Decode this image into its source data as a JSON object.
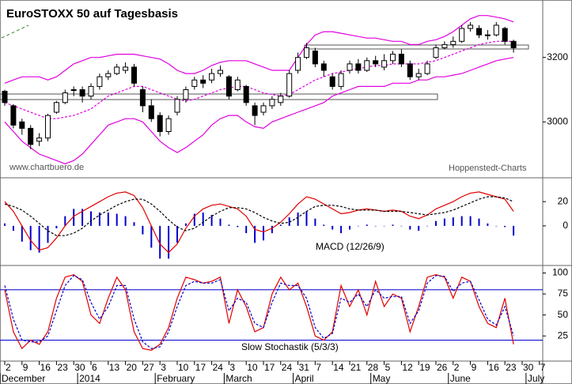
{
  "chart_data": [
    {
      "type": "candlestick",
      "title": "EuroSTOXX 50 auf Tagesbasis",
      "source": "www.chartbuero.de",
      "credit": "Hoppenstedt-Charts",
      "ylim": [
        2829,
        3366
      ],
      "yticks": [
        3000,
        3200
      ],
      "candle_color": "#000000",
      "band_color": "#e000e0",
      "open": [
        3095,
        3050,
        3000,
        2980,
        2940,
        2950,
        3030,
        3060,
        3100,
        3100,
        3080,
        3110,
        3140,
        3150,
        3160,
        3170,
        3100,
        3050,
        3020,
        2970,
        3030,
        3070,
        3110,
        3130,
        3130,
        3150,
        3140,
        3100,
        3110,
        3050,
        3030,
        3050,
        3060,
        3080,
        3160,
        3200,
        3220,
        3180,
        3140,
        3110,
        3160,
        3180,
        3160,
        3190,
        3170,
        3190,
        3210,
        3180,
        3140,
        3150,
        3200,
        3230,
        3240,
        3250,
        3290,
        3290,
        3270,
        3270,
        3290,
        3250,
        null,
        null,
        null,
        null
      ],
      "high": [
        3100,
        3055,
        3010,
        2990,
        2965,
        3025,
        3065,
        3100,
        3110,
        3110,
        3120,
        3150,
        3160,
        3180,
        3185,
        3180,
        3110,
        3070,
        3030,
        3020,
        3080,
        3110,
        3140,
        3145,
        3165,
        3175,
        3145,
        3140,
        3115,
        3060,
        3060,
        3080,
        3090,
        3160,
        3215,
        3245,
        3230,
        3190,
        3150,
        3160,
        3190,
        3195,
        3200,
        3205,
        3210,
        3220,
        3225,
        3190,
        3165,
        3190,
        3240,
        3250,
        3265,
        3300,
        3310,
        3300,
        3285,
        3310,
        3295,
        3255,
        null,
        null,
        null,
        null
      ],
      "low": [
        3050,
        2980,
        2960,
        2915,
        2925,
        2940,
        3025,
        3055,
        3080,
        3060,
        3070,
        3100,
        3130,
        3145,
        3150,
        3110,
        3030,
        3000,
        2955,
        2960,
        3020,
        3060,
        3100,
        3105,
        3120,
        3140,
        3070,
        3095,
        3050,
        2990,
        3020,
        3040,
        3050,
        3075,
        3150,
        3195,
        3170,
        3140,
        3100,
        3100,
        3150,
        3150,
        3155,
        3170,
        3160,
        3180,
        3170,
        3130,
        3130,
        3145,
        3195,
        3225,
        3230,
        3245,
        3280,
        3260,
        3255,
        3265,
        3240,
        3215,
        null,
        null,
        null,
        null
      ],
      "close": [
        3060,
        2990,
        2980,
        2930,
        2950,
        3020,
        3060,
        3090,
        3100,
        3080,
        3110,
        3140,
        3150,
        3170,
        3170,
        3120,
        3050,
        3010,
        2970,
        3010,
        3070,
        3100,
        3130,
        3120,
        3150,
        3160,
        3080,
        3130,
        3060,
        3020,
        3050,
        3070,
        3080,
        3150,
        3200,
        3230,
        3180,
        3160,
        3110,
        3150,
        3180,
        3160,
        3190,
        3180,
        3190,
        3210,
        3180,
        3140,
        3150,
        3180,
        3230,
        3240,
        3250,
        3290,
        3300,
        3270,
        3270,
        3300,
        3250,
        3230,
        null,
        null,
        null,
        null
      ],
      "upper": [
        3120,
        3130,
        3140,
        3140,
        3140,
        3130,
        3140,
        3160,
        3180,
        3190,
        3200,
        3200,
        3205,
        3210,
        3210,
        3210,
        3205,
        3200,
        3195,
        3180,
        3160,
        3150,
        3150,
        3160,
        3175,
        3185,
        3190,
        3190,
        3190,
        3180,
        3170,
        3160,
        3160,
        3160,
        3200,
        3240,
        3270,
        3280,
        3280,
        3275,
        3270,
        3265,
        3260,
        3260,
        3255,
        3250,
        3250,
        3240,
        3240,
        3250,
        3255,
        3265,
        3280,
        3300,
        3320,
        3330,
        3330,
        3325,
        3320,
        3310,
        null,
        null,
        null,
        null
      ],
      "middle": [
        3060,
        3050,
        3040,
        3030,
        3020,
        3010,
        3010,
        3015,
        3020,
        3030,
        3040,
        3060,
        3080,
        3090,
        3100,
        3110,
        3110,
        3100,
        3090,
        3080,
        3070,
        3065,
        3070,
        3080,
        3090,
        3100,
        3105,
        3110,
        3110,
        3100,
        3090,
        3085,
        3080,
        3085,
        3100,
        3115,
        3130,
        3140,
        3150,
        3155,
        3160,
        3165,
        3170,
        3175,
        3175,
        3180,
        3180,
        3180,
        3180,
        3185,
        3190,
        3200,
        3210,
        3220,
        3230,
        3240,
        3245,
        3250,
        3250,
        3250,
        null,
        null,
        null,
        null
      ],
      "lower": [
        3000,
        2970,
        2940,
        2920,
        2900,
        2890,
        2880,
        2870,
        2880,
        2900,
        2930,
        2960,
        2990,
        3000,
        3010,
        3010,
        3000,
        2970,
        2940,
        2920,
        2905,
        2920,
        2940,
        2960,
        2990,
        3010,
        3020,
        3020,
        3000,
        2985,
        2980,
        3000,
        3010,
        3020,
        3030,
        3040,
        3050,
        3060,
        3080,
        3090,
        3100,
        3110,
        3110,
        3110,
        3110,
        3120,
        3120,
        3120,
        3130,
        3130,
        3140,
        3140,
        3145,
        3150,
        3160,
        3170,
        3180,
        3190,
        3195,
        3200,
        null,
        null,
        null,
        null
      ]
    },
    {
      "type": "macd",
      "label": "MACD (12/26/9)",
      "ylim": [
        -32,
        39
      ],
      "yticks": [
        0,
        20
      ],
      "series": [
        {
          "color": "#e00000",
          "values": [
            20,
            12,
            0,
            -12,
            -20,
            -18,
            -10,
            0,
            8,
            12,
            16,
            20,
            24,
            27,
            28,
            25,
            15,
            0,
            -15,
            -22,
            -15,
            -2,
            8,
            14,
            17,
            18,
            16,
            14,
            8,
            -3,
            -5,
            -2,
            3,
            10,
            18,
            24,
            22,
            18,
            14,
            10,
            11,
            13,
            14,
            13,
            12,
            13,
            12,
            8,
            6,
            9,
            14,
            17,
            20,
            24,
            27,
            28,
            26,
            24,
            22,
            12,
            null,
            null,
            null,
            null
          ]
        },
        {
          "color": "#000000",
          "dashed": true,
          "values": [
            18,
            16,
            13,
            8,
            2,
            -4,
            -8,
            -8,
            -6,
            -2,
            4,
            9,
            13,
            17,
            20,
            22,
            22,
            18,
            12,
            5,
            -1,
            -4,
            -2,
            3,
            8,
            12,
            15,
            15,
            14,
            11,
            7,
            4,
            2,
            3,
            7,
            12,
            16,
            17,
            17,
            16,
            14,
            13,
            13,
            13,
            12,
            12,
            12,
            11,
            10,
            9,
            10,
            11,
            13,
            16,
            19,
            22,
            24,
            24,
            23,
            20,
            null,
            null,
            null,
            null
          ]
        }
      ],
      "histogram": {
        "color": "#0000cc",
        "values": [
          2,
          -4,
          -13,
          -20,
          -22,
          -14,
          -2,
          8,
          14,
          14,
          12,
          11,
          11,
          10,
          8,
          3,
          -7,
          -18,
          -27,
          -27,
          -14,
          2,
          10,
          11,
          9,
          6,
          1,
          -1,
          -6,
          -14,
          -12,
          -6,
          1,
          7,
          11,
          12,
          6,
          1,
          -3,
          -6,
          -3,
          0,
          1,
          0,
          0,
          1,
          0,
          -3,
          -4,
          0,
          4,
          6,
          7,
          8,
          8,
          6,
          2,
          0,
          -1,
          -8,
          null,
          null,
          null,
          null
        ]
      }
    },
    {
      "type": "line",
      "label": "Slow Stochastik (5/3/3)",
      "ylim": [
        -4,
        108
      ],
      "yticks": [
        25,
        50,
        75,
        100
      ],
      "levels": [
        20,
        80
      ],
      "level_color": "#0000cc",
      "categories": [
        "2",
        null,
        "9",
        null,
        "16",
        null,
        "23",
        null,
        "30",
        null,
        "6",
        null,
        "13",
        null,
        "20",
        null,
        "27",
        null,
        "3",
        null,
        "10",
        null,
        "17",
        null,
        "24",
        null,
        "3",
        null,
        "10",
        null,
        "17",
        null,
        "24",
        null,
        "31",
        null,
        "7",
        null,
        "14",
        null,
        "21",
        null,
        "28",
        null,
        "5",
        null,
        "12",
        null,
        "19",
        null,
        "26",
        null,
        "2",
        null,
        "9",
        null,
        "16",
        null,
        "23",
        null,
        "30",
        null,
        "7",
        null
      ],
      "months": [
        "December",
        null,
        null,
        null,
        null,
        null,
        null,
        null,
        null,
        "2014",
        null,
        null,
        null,
        null,
        null,
        null,
        null,
        null,
        "February",
        null,
        null,
        null,
        null,
        null,
        null,
        null,
        "March",
        null,
        null,
        null,
        null,
        null,
        null,
        null,
        "April",
        null,
        null,
        null,
        null,
        null,
        null,
        null,
        null,
        "May",
        null,
        null,
        null,
        null,
        null,
        null,
        null,
        null,
        "June",
        null,
        null,
        null,
        null,
        null,
        null,
        null,
        null,
        "July",
        null,
        null
      ],
      "series": [
        {
          "color": "#e00000",
          "values": [
            80,
            30,
            10,
            20,
            15,
            30,
            70,
            95,
            98,
            90,
            50,
            40,
            70,
            95,
            80,
            30,
            10,
            8,
            15,
            35,
            70,
            95,
            92,
            88,
            90,
            95,
            40,
            80,
            60,
            30,
            35,
            75,
            95,
            80,
            88,
            60,
            25,
            20,
            30,
            85,
            60,
            80,
            50,
            90,
            60,
            75,
            70,
            30,
            60,
            95,
            98,
            95,
            70,
            95,
            90,
            60,
            40,
            35,
            70,
            15,
            null,
            null,
            null,
            null
          ]
        },
        {
          "color": "#0000cc",
          "dashed": true,
          "values": [
            85,
            45,
            20,
            18,
            18,
            25,
            55,
            85,
            97,
            92,
            65,
            45,
            60,
            85,
            85,
            45,
            18,
            10,
            12,
            30,
            60,
            85,
            90,
            88,
            88,
            92,
            55,
            70,
            65,
            40,
            35,
            65,
            88,
            85,
            85,
            70,
            35,
            22,
            28,
            70,
            65,
            75,
            60,
            80,
            70,
            72,
            72,
            40,
            55,
            88,
            97,
            96,
            78,
            88,
            90,
            68,
            45,
            38,
            60,
            25,
            null,
            null,
            null,
            null
          ]
        }
      ]
    }
  ]
}
